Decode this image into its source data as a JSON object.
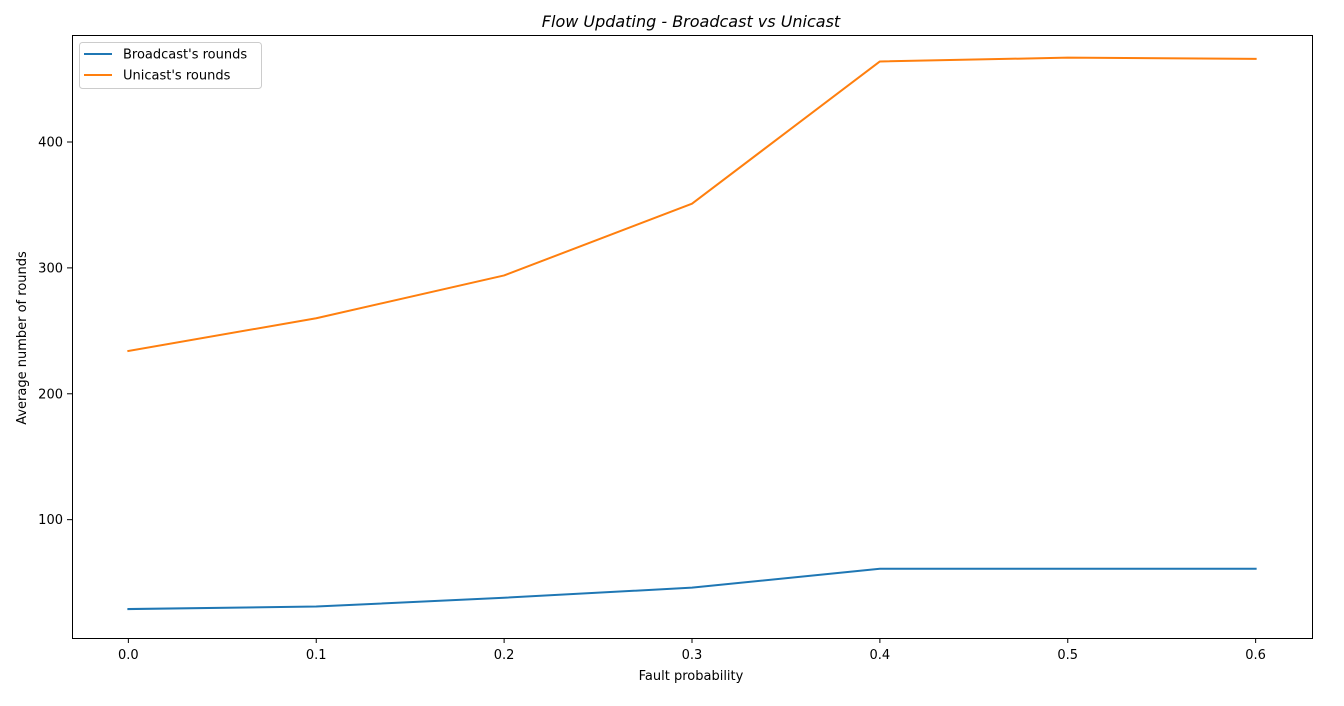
{
  "chart_data": {
    "type": "line",
    "title": "Flow Updating - Broadcast vs Unicast",
    "xlabel": "Fault probability",
    "ylabel": "Average number of rounds",
    "x": [
      0.0,
      0.1,
      0.2,
      0.3,
      0.4,
      0.5,
      0.6
    ],
    "xlim": [
      -0.03,
      0.63
    ],
    "ylim": [
      6,
      485
    ],
    "xticks": [
      0.0,
      0.1,
      0.2,
      0.3,
      0.4,
      0.5,
      0.6
    ],
    "xtick_labels": [
      "0.0",
      "0.1",
      "0.2",
      "0.3",
      "0.4",
      "0.5",
      "0.6"
    ],
    "yticks": [
      100,
      200,
      300,
      400
    ],
    "ytick_labels": [
      "100",
      "200",
      "300",
      "400"
    ],
    "grid": false,
    "legend_position": "top-left",
    "series": [
      {
        "name": "Broadcast's rounds",
        "color": "#1f77b4",
        "values": [
          29,
          31,
          38,
          46,
          61,
          61,
          61
        ]
      },
      {
        "name": "Unicast's rounds",
        "color": "#ff7f0e",
        "values": [
          234,
          260,
          294,
          351,
          464,
          467,
          466
        ]
      }
    ]
  }
}
